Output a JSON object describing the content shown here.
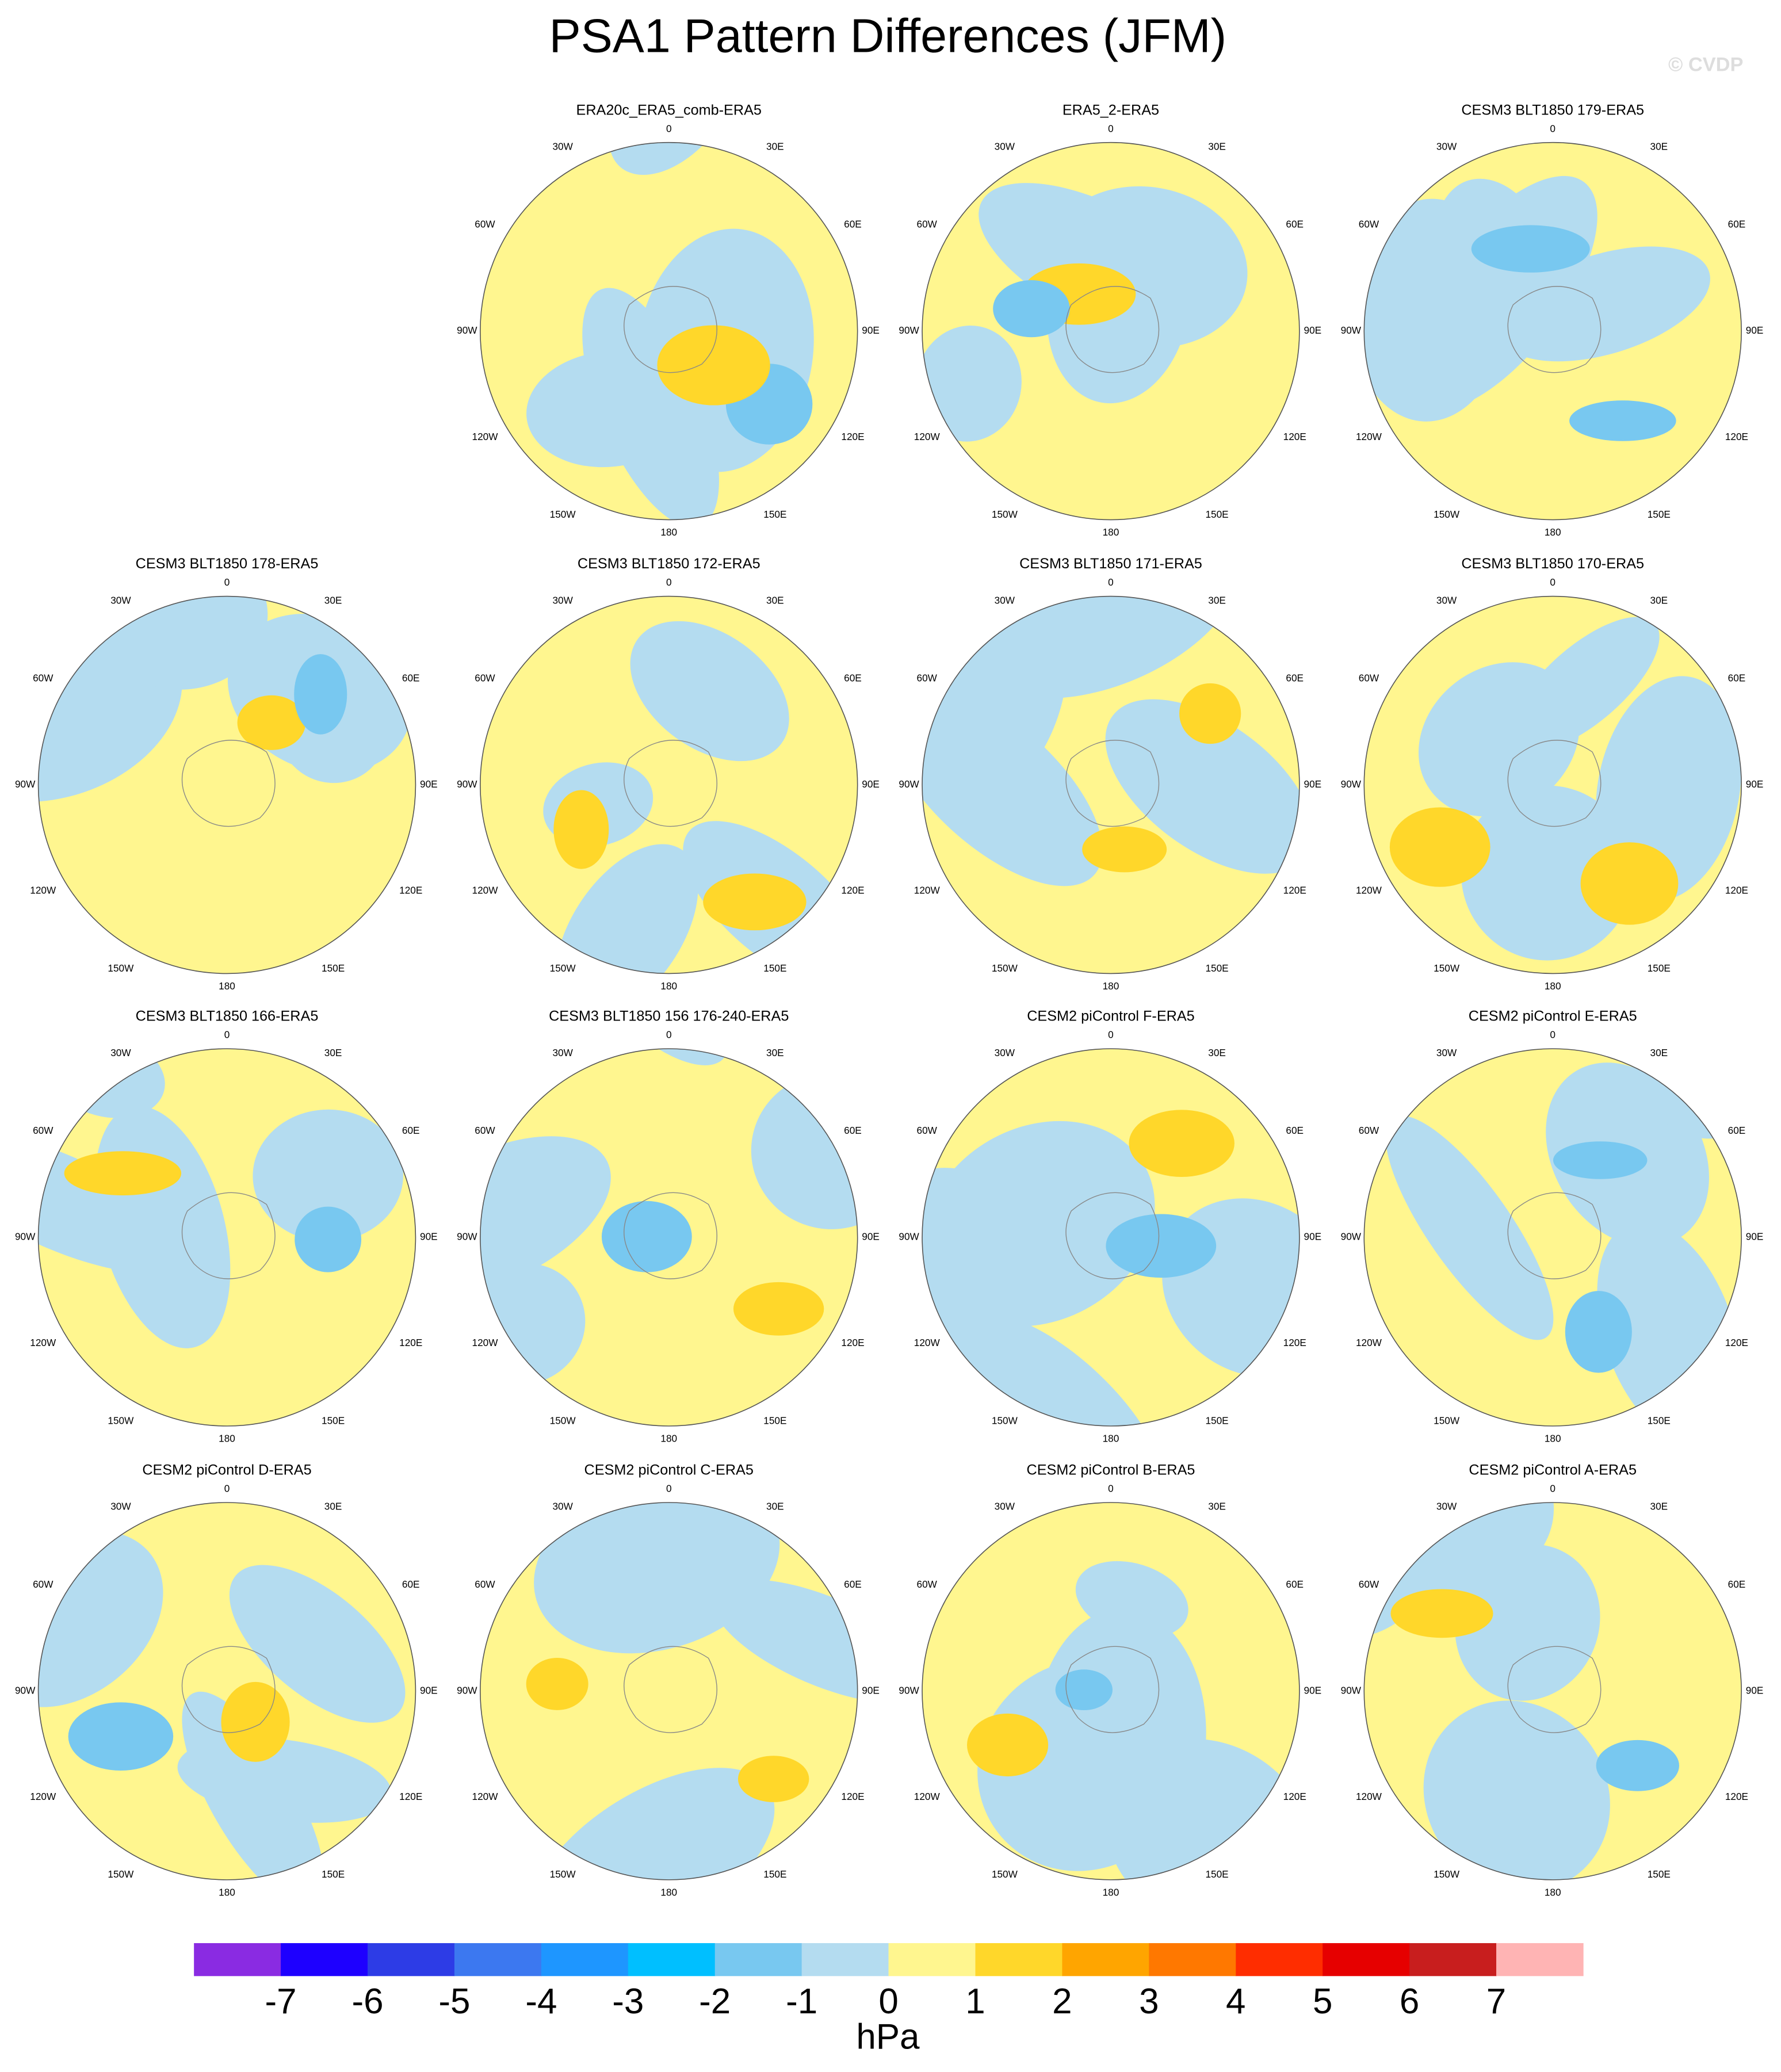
{
  "header": {
    "title": "PSA1 Pattern Differences (JFM)",
    "watermark": "© CVDP"
  },
  "longitude_labels": [
    "0",
    "30E",
    "60E",
    "90E",
    "120E",
    "150E",
    "180",
    "150W",
    "120W",
    "90W",
    "60W",
    "30W"
  ],
  "panels": [
    {
      "title": "ERA20c_ERA5_comb-ERA5"
    },
    {
      "title": "ERA5_2-ERA5"
    },
    {
      "title": "CESM3 BLT1850 179-ERA5"
    },
    {
      "title": "CESM3 BLT1850 178-ERA5"
    },
    {
      "title": "CESM3 BLT1850 172-ERA5"
    },
    {
      "title": "CESM3 BLT1850 171-ERA5"
    },
    {
      "title": "CESM3 BLT1850 170-ERA5"
    },
    {
      "title": "CESM3 BLT1850 166-ERA5"
    },
    {
      "title": "CESM3 BLT1850 156 176-240-ERA5"
    },
    {
      "title": "CESM2 piControl F-ERA5"
    },
    {
      "title": "CESM2 piControl E-ERA5"
    },
    {
      "title": "CESM2 piControl D-ERA5"
    },
    {
      "title": "CESM2 piControl C-ERA5"
    },
    {
      "title": "CESM2 piControl B-ERA5"
    },
    {
      "title": "CESM2 piControl A-ERA5"
    }
  ],
  "colorbar": {
    "colors": [
      "#8a2be2",
      "#1e00ff",
      "#2d3ce6",
      "#3c78f0",
      "#1e96ff",
      "#00bfff",
      "#78c8f0",
      "#b4dcf0",
      "#fff68f",
      "#ffd72a",
      "#ffa500",
      "#ff7800",
      "#ff2d00",
      "#e60000",
      "#c81e1e",
      "#ffb4b4"
    ],
    "levels": [
      -7,
      -6,
      -5,
      -4,
      -3,
      -2,
      -1,
      0,
      1,
      2,
      3,
      4,
      5,
      6,
      7
    ],
    "units": "hPa"
  }
}
